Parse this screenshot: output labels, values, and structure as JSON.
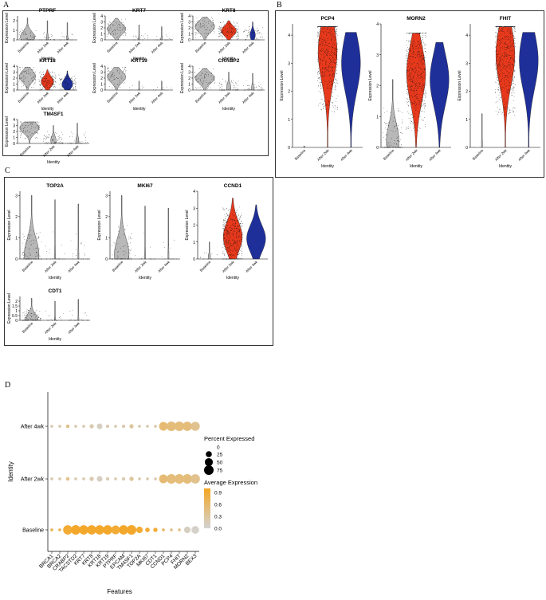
{
  "panel_labels": [
    "A",
    "B",
    "C",
    "D"
  ],
  "colors": {
    "baseline": "#b8b8b8",
    "after2wk": "#e8391c",
    "after4wk": "#1f2f9a",
    "dot_high": "#f5a623",
    "dot_low": "#d3d3d3",
    "points": "#111111"
  },
  "violin_common": {
    "ylabel": "Expression Level",
    "xlabel": "Identity",
    "groups": [
      "Baseline",
      "After 2wk",
      "After 4wk"
    ]
  },
  "chart_data": [
    {
      "type": "violin",
      "panel": "A",
      "genes": [
        {
          "title": "PTPRF",
          "ylim": [
            0,
            2.5
          ],
          "yticks": [
            0,
            1,
            2
          ],
          "widths": [
            0.8,
            0.12,
            0.08
          ],
          "medians": [
            0.3,
            0.0,
            0.0
          ],
          "max": [
            2.3,
            2.0,
            1.8
          ],
          "colored": false,
          "pts": [
            60,
            25,
            20
          ]
        },
        {
          "title": "KRT7",
          "ylim": [
            0,
            4
          ],
          "yticks": [
            0,
            1,
            2,
            3,
            4
          ],
          "widths": [
            0.9,
            0.08,
            0.08
          ],
          "medians": [
            1.8,
            0.0,
            0.0
          ],
          "max": [
            3.6,
            2.5,
            2.2
          ],
          "colored": false,
          "pts": [
            80,
            20,
            20
          ]
        },
        {
          "title": "KRT8",
          "ylim": [
            0,
            4
          ],
          "yticks": [
            0,
            1,
            2,
            3,
            4
          ],
          "widths": [
            0.9,
            0.7,
            0.25
          ],
          "medians": [
            2.2,
            1.5,
            0.8
          ],
          "max": [
            3.8,
            3.2,
            3.0
          ],
          "colored": true,
          "pts": [
            80,
            140,
            60
          ]
        },
        {
          "title": "KRT18",
          "ylim": [
            0,
            4
          ],
          "yticks": [
            0,
            1,
            2,
            3,
            4
          ],
          "widths": [
            0.9,
            0.7,
            0.6
          ],
          "medians": [
            2.3,
            1.4,
            1.0
          ],
          "max": [
            3.8,
            3.4,
            3.2
          ],
          "colored": true,
          "pts": [
            80,
            140,
            100
          ]
        },
        {
          "title": "KRT19",
          "ylim": [
            0,
            4
          ],
          "yticks": [
            0,
            1,
            2,
            3,
            4
          ],
          "widths": [
            0.9,
            0.05,
            0.05
          ],
          "medians": [
            2.2,
            0.0,
            0.0
          ],
          "max": [
            3.8,
            1.5,
            1.5
          ],
          "colored": false,
          "pts": [
            80,
            10,
            10
          ]
        },
        {
          "title": "CRABP2",
          "ylim": [
            0,
            4
          ],
          "yticks": [
            0,
            1,
            2,
            3,
            4
          ],
          "widths": [
            0.9,
            0.2,
            0.12
          ],
          "medians": [
            2.0,
            0.4,
            0.2
          ],
          "max": [
            3.6,
            3.0,
            2.8
          ],
          "colored": false,
          "pts": [
            80,
            70,
            40
          ]
        },
        {
          "title": "TM4SF1",
          "ylim": [
            0,
            4
          ],
          "yticks": [
            0,
            1,
            2,
            3,
            4
          ],
          "widths": [
            0.9,
            0.25,
            0.15
          ],
          "medians": [
            2.6,
            0.5,
            0.2
          ],
          "max": [
            3.6,
            3.0,
            3.4
          ],
          "colored": false,
          "pts": [
            80,
            80,
            40
          ]
        }
      ]
    },
    {
      "type": "violin",
      "panel": "B",
      "genes": [
        {
          "title": "PCP4",
          "ylim": [
            0,
            4.4
          ],
          "yticks": [
            0,
            1,
            2,
            3,
            4
          ],
          "widths": [
            0.05,
            0.9,
            0.9
          ],
          "medians": [
            0.0,
            3.4,
            3.0
          ],
          "max": [
            0.05,
            4.3,
            4.1
          ],
          "colored": true,
          "pts": [
            0,
            600,
            0
          ]
        },
        {
          "title": "MORN2",
          "ylim": [
            0,
            4
          ],
          "yticks": [
            0,
            1,
            2,
            3,
            4
          ],
          "widths": [
            0.6,
            0.9,
            0.9
          ],
          "medians": [
            0.2,
            2.4,
            2.2
          ],
          "max": [
            2.2,
            3.7,
            3.4
          ],
          "colored": true,
          "pts": [
            120,
            600,
            0
          ]
        },
        {
          "title": "FHIT",
          "ylim": [
            0,
            4.4
          ],
          "yticks": [
            0,
            1,
            2,
            3,
            4
          ],
          "widths": [
            0.05,
            0.9,
            0.9
          ],
          "medians": [
            0.0,
            3.3,
            3.1
          ],
          "max": [
            1.2,
            4.3,
            4.1
          ],
          "colored": true,
          "pts": [
            2,
            600,
            0
          ]
        }
      ]
    },
    {
      "type": "violin",
      "panel": "C",
      "genes": [
        {
          "title": "TOP2A",
          "ylim": [
            0,
            3.2
          ],
          "yticks": [
            0,
            1,
            2,
            3
          ],
          "widths": [
            0.7,
            0.05,
            0.05
          ],
          "medians": [
            0.2,
            0.0,
            0.0
          ],
          "max": [
            3.0,
            2.8,
            2.6
          ],
          "colored": false,
          "pts": [
            110,
            20,
            20
          ]
        },
        {
          "title": "MKI67",
          "ylim": [
            0,
            3.2
          ],
          "yticks": [
            0,
            1,
            2,
            3
          ],
          "widths": [
            0.7,
            0.05,
            0.05
          ],
          "medians": [
            0.2,
            0.0,
            0.0
          ],
          "max": [
            3.0,
            2.5,
            2.4
          ],
          "colored": false,
          "pts": [
            80,
            15,
            15
          ]
        },
        {
          "title": "CCND1",
          "ylim": [
            0,
            4
          ],
          "yticks": [
            0,
            1,
            2,
            3,
            4
          ],
          "widths": [
            0.1,
            0.9,
            0.9
          ],
          "medians": [
            0.0,
            1.3,
            1.2
          ],
          "max": [
            1.0,
            3.6,
            3.2
          ],
          "colored": true,
          "pts": [
            10,
            400,
            0
          ]
        },
        {
          "title": "CDT1",
          "ylim": [
            0,
            2.5
          ],
          "yticks": [
            0.0,
            0.5,
            1.0,
            1.5,
            2.0
          ],
          "widths": [
            0.6,
            0.05,
            0.05
          ],
          "medians": [
            0.1,
            0.0,
            0.0
          ],
          "max": [
            2.3,
            2.0,
            2.2
          ],
          "colored": false,
          "pts": [
            100,
            20,
            25
          ]
        }
      ]
    },
    {
      "type": "dot",
      "panel": "D",
      "xlabel": "Features",
      "ylabel": "Identity",
      "identities": [
        "After 4wk",
        "After 2wk",
        "Baseline"
      ],
      "features": [
        "BRCA1",
        "BRCA2",
        "CRABP2",
        "TACSTD2",
        "KRT7",
        "KRT8",
        "KRT18",
        "KRT19",
        "PTPRF",
        "EPCAM",
        "TM4SF1",
        "TOP2A",
        "MKI67",
        "CDT1",
        "CCND1",
        "PCP4",
        "FHIT",
        "MORN2",
        "BEX3"
      ],
      "pct_expressed": [
        [
          3,
          3,
          6,
          3,
          3,
          10,
          20,
          5,
          3,
          5,
          10,
          3,
          3,
          3,
          60,
          75,
          75,
          70,
          65
        ],
        [
          3,
          3,
          6,
          3,
          3,
          10,
          20,
          5,
          3,
          5,
          10,
          3,
          3,
          3,
          60,
          75,
          75,
          75,
          70
        ],
        [
          3,
          3,
          70,
          75,
          70,
          70,
          70,
          70,
          60,
          70,
          75,
          30,
          12,
          10,
          3,
          3,
          3,
          30,
          45
        ]
      ],
      "avg_expression": [
        [
          0.2,
          0.2,
          0.4,
          0.2,
          0.2,
          0.2,
          0.1,
          0.2,
          0.2,
          0.2,
          0.3,
          0.2,
          0.2,
          0.2,
          0.55,
          0.5,
          0.5,
          0.5,
          0.4
        ],
        [
          0.2,
          0.2,
          0.4,
          0.2,
          0.2,
          0.2,
          0.1,
          0.2,
          0.2,
          0.2,
          0.3,
          0.2,
          0.2,
          0.2,
          0.55,
          0.5,
          0.5,
          0.5,
          0.4
        ],
        [
          0.7,
          0.7,
          0.9,
          0.95,
          0.95,
          0.95,
          0.95,
          0.95,
          0.9,
          0.95,
          0.95,
          0.9,
          0.9,
          0.9,
          0.6,
          0.4,
          0.4,
          0.1,
          0.05
        ]
      ],
      "size_legend": {
        "title": "Percent Expressed",
        "values": [
          0,
          25,
          50,
          75
        ]
      },
      "color_legend": {
        "title": "Average Expression",
        "ticks": [
          0.9,
          0.6,
          0.3,
          0.0
        ],
        "range": [
          0.0,
          1.0
        ]
      }
    }
  ]
}
